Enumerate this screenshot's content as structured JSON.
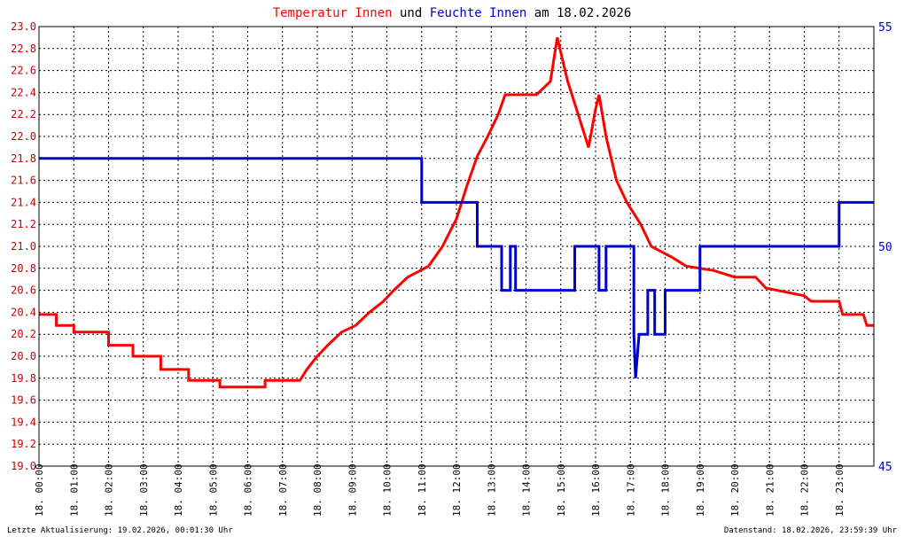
{
  "title": {
    "part1": "Temperatur Innen",
    "part2": " und ",
    "part3": "Feuchte Innen",
    "part4": " am 18.02.2026"
  },
  "footer": {
    "left": "Letzte Aktualisierung: 19.02.2026, 00:01:30 Uhr",
    "right": "Datenstand: 18.02.2026, 23:59:39 Uhr"
  },
  "colors": {
    "temperature": "#ff0000",
    "humidity": "#0000cc",
    "title_neutral": "#000000",
    "grid": "#000000",
    "left_ticks": "#cc0000",
    "right_ticks": "#0000cc",
    "background": "#ffffff",
    "frame": "#000000"
  },
  "chart_data": {
    "type": "line",
    "grid": true,
    "x_label_prefix": "18.",
    "x_ticks": [
      "00:00",
      "01:00",
      "02:00",
      "03:00",
      "04:00",
      "05:00",
      "06:00",
      "07:00",
      "08:00",
      "09:00",
      "10:00",
      "11:00",
      "12:00",
      "13:00",
      "14:00",
      "15:00",
      "16:00",
      "17:00",
      "18:00",
      "19:00",
      "20:00",
      "21:00",
      "22:00",
      "23:00"
    ],
    "xlim": [
      0,
      24
    ],
    "y_left": {
      "ylim": [
        19.0,
        23.0
      ],
      "ticks": [
        "19.0",
        "19.2",
        "19.4",
        "19.6",
        "19.8",
        "20.0",
        "20.2",
        "20.4",
        "20.6",
        "20.8",
        "21.0",
        "21.2",
        "21.4",
        "21.6",
        "21.8",
        "22.0",
        "22.2",
        "22.4",
        "22.6",
        "22.8",
        "23.0"
      ]
    },
    "y_right": {
      "ylim": [
        45,
        55
      ],
      "ticks": [
        "45",
        "50",
        "55"
      ]
    },
    "series": [
      {
        "name": "Temperatur Innen",
        "axis": "left",
        "points": [
          [
            0.0,
            20.38
          ],
          [
            0.5,
            20.38
          ],
          [
            0.5,
            20.28
          ],
          [
            1.0,
            20.28
          ],
          [
            1.0,
            20.22
          ],
          [
            2.0,
            20.22
          ],
          [
            2.0,
            20.1
          ],
          [
            2.7,
            20.1
          ],
          [
            2.7,
            20.0
          ],
          [
            3.5,
            20.0
          ],
          [
            3.5,
            19.88
          ],
          [
            4.3,
            19.88
          ],
          [
            4.3,
            19.78
          ],
          [
            5.2,
            19.78
          ],
          [
            5.2,
            19.72
          ],
          [
            6.5,
            19.72
          ],
          [
            6.5,
            19.78
          ],
          [
            7.5,
            19.78
          ],
          [
            7.7,
            19.88
          ],
          [
            8.0,
            20.0
          ],
          [
            8.3,
            20.1
          ],
          [
            8.7,
            20.22
          ],
          [
            9.1,
            20.28
          ],
          [
            9.5,
            20.4
          ],
          [
            9.9,
            20.5
          ],
          [
            10.2,
            20.6
          ],
          [
            10.6,
            20.72
          ],
          [
            11.2,
            20.82
          ],
          [
            11.6,
            21.0
          ],
          [
            12.0,
            21.25
          ],
          [
            12.3,
            21.55
          ],
          [
            12.6,
            21.82
          ],
          [
            12.9,
            22.0
          ],
          [
            13.2,
            22.2
          ],
          [
            13.4,
            22.38
          ],
          [
            14.3,
            22.38
          ],
          [
            14.7,
            22.5
          ],
          [
            14.9,
            22.9
          ],
          [
            15.2,
            22.5
          ],
          [
            15.5,
            22.2
          ],
          [
            15.8,
            21.9
          ],
          [
            16.0,
            22.25
          ],
          [
            16.1,
            22.38
          ],
          [
            16.3,
            22.0
          ],
          [
            16.6,
            21.6
          ],
          [
            16.9,
            21.4
          ],
          [
            17.3,
            21.2
          ],
          [
            17.6,
            21.0
          ],
          [
            18.2,
            20.9
          ],
          [
            18.6,
            20.82
          ],
          [
            19.4,
            20.78
          ],
          [
            20.0,
            20.72
          ],
          [
            20.6,
            20.72
          ],
          [
            20.9,
            20.62
          ],
          [
            22.0,
            20.55
          ],
          [
            22.2,
            20.5
          ],
          [
            23.0,
            20.5
          ],
          [
            23.1,
            20.38
          ],
          [
            23.7,
            20.38
          ],
          [
            23.8,
            20.28
          ],
          [
            24.0,
            20.28
          ]
        ]
      },
      {
        "name": "Feuchte Innen",
        "axis": "right",
        "points": [
          [
            0.0,
            52.0
          ],
          [
            11.0,
            52.0
          ],
          [
            11.0,
            51.0
          ],
          [
            12.6,
            51.0
          ],
          [
            12.6,
            50.0
          ],
          [
            13.3,
            50.0
          ],
          [
            13.3,
            49.0
          ],
          [
            13.55,
            49.0
          ],
          [
            13.55,
            50.0
          ],
          [
            13.7,
            50.0
          ],
          [
            13.7,
            49.0
          ],
          [
            15.4,
            49.0
          ],
          [
            15.4,
            50.0
          ],
          [
            16.1,
            50.0
          ],
          [
            16.1,
            49.0
          ],
          [
            16.3,
            49.0
          ],
          [
            16.3,
            50.0
          ],
          [
            17.1,
            50.0
          ],
          [
            17.1,
            48.0
          ],
          [
            17.15,
            47.0
          ],
          [
            17.25,
            48.0
          ],
          [
            17.5,
            48.0
          ],
          [
            17.5,
            49.0
          ],
          [
            17.7,
            49.0
          ],
          [
            17.7,
            48.0
          ],
          [
            18.0,
            48.0
          ],
          [
            18.0,
            49.0
          ],
          [
            19.0,
            49.0
          ],
          [
            19.0,
            50.0
          ],
          [
            23.0,
            50.0
          ],
          [
            23.0,
            51.0
          ],
          [
            24.0,
            51.0
          ]
        ]
      }
    ]
  }
}
